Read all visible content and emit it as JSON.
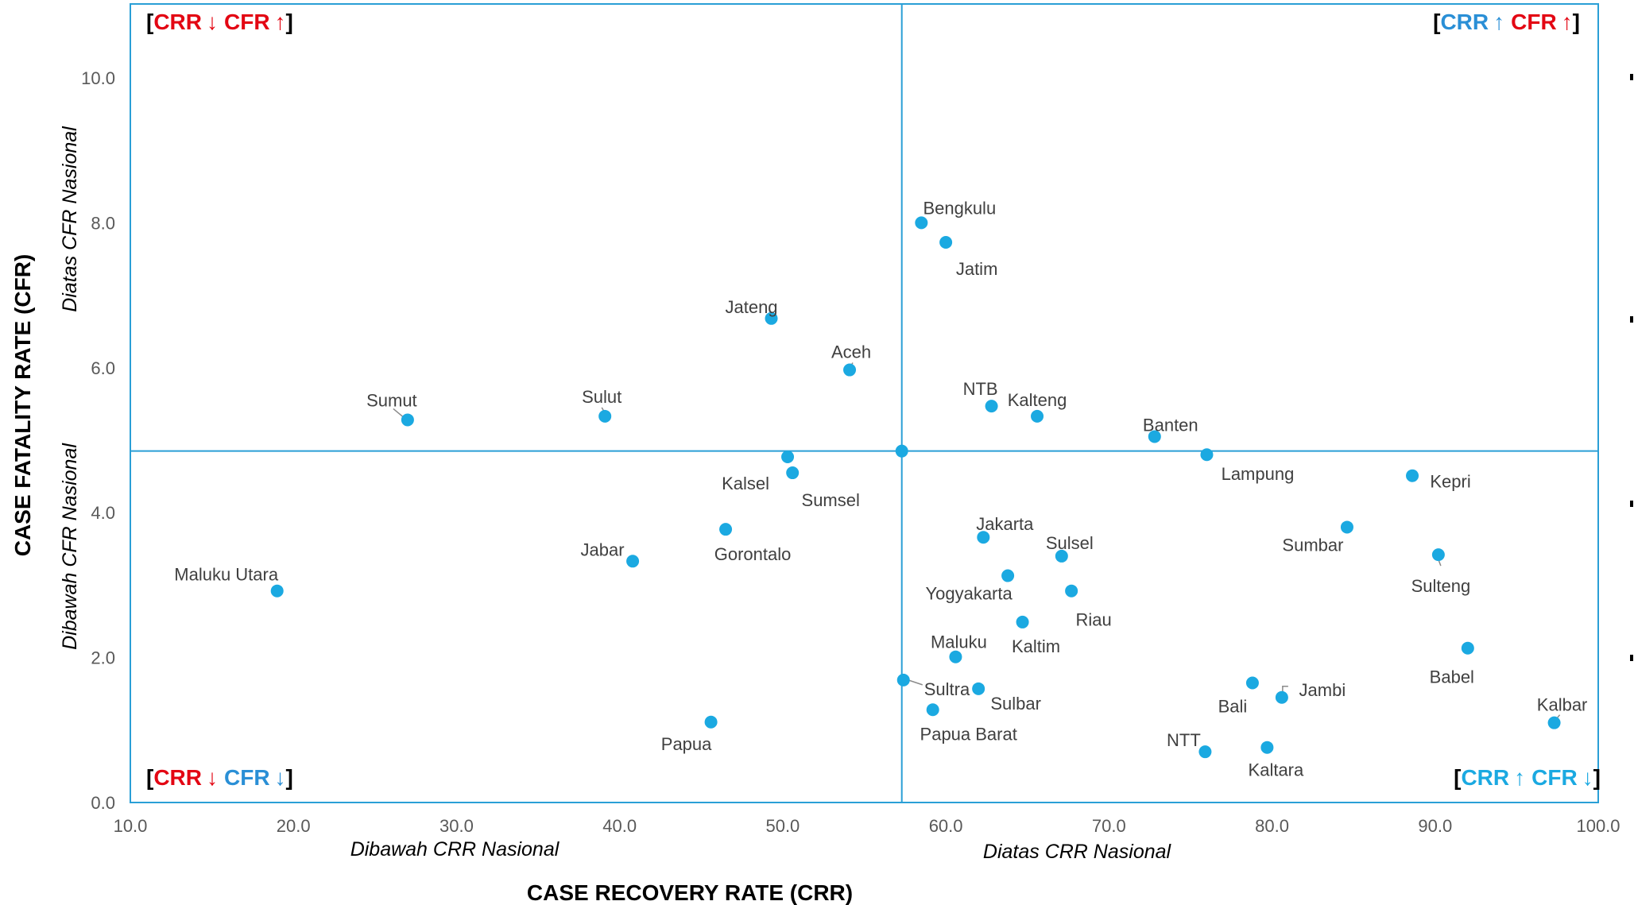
{
  "chart_data": {
    "type": "scatter",
    "xlabel": "CASE RECOVERY RATE (CRR)",
    "ylabel": "CASE FATALITY RATE (CFR)",
    "xlim": [
      10,
      100
    ],
    "ylim": [
      0,
      11
    ],
    "x_ticks": [
      "10.0",
      "20.0",
      "30.0",
      "40.0",
      "50.0",
      "60.0",
      "70.0",
      "80.0",
      "90.0",
      "100.0"
    ],
    "y_ticks": [
      "0.0",
      "2.0",
      "4.0",
      "6.0",
      "8.0",
      "10.0"
    ],
    "reference_lines": {
      "crr_nasional": 57.3,
      "cfr_nasional": 4.85
    },
    "zone_labels": {
      "x_below": "Dibawah CRR Nasional",
      "x_above": "Diatas CRR Nasional",
      "y_below": "Dibawah CFR Nasional",
      "y_above": "Diatas CFR Nasional"
    },
    "quadrants": {
      "top_left": {
        "a": "CRR",
        "a_arrow": "↓",
        "b": "CFR",
        "b_arrow": "↑"
      },
      "top_right": {
        "a": "CRR",
        "a_arrow": "↑",
        "b": "CFR",
        "b_arrow": "↑"
      },
      "bottom_left": {
        "a": "CRR",
        "a_arrow": "↓",
        "b": "CFR",
        "b_arrow": "↓"
      },
      "bottom_right": {
        "a": "CRR",
        "a_arrow": "↑",
        "b": "CFR",
        "b_arrow": "↓"
      }
    },
    "colors": {
      "point": "#1ba9e1",
      "line": "#2a9fd6",
      "red": "#e30613",
      "blue": "#2a8fd6",
      "cyan": "#1ba9e1"
    },
    "points": [
      {
        "label": "Maluku Utara",
        "x": 19.0,
        "y": 2.92
      },
      {
        "label": "Sumut",
        "x": 27.0,
        "y": 5.28
      },
      {
        "label": "Sulut",
        "x": 39.1,
        "y": 5.33
      },
      {
        "label": "Jabar",
        "x": 40.8,
        "y": 3.33
      },
      {
        "label": "Papua",
        "x": 45.6,
        "y": 1.11
      },
      {
        "label": "Gorontalo",
        "x": 46.5,
        "y": 3.77
      },
      {
        "label": "Jateng",
        "x": 49.3,
        "y": 6.68
      },
      {
        "label": "Kalsel",
        "x": 50.3,
        "y": 4.77
      },
      {
        "label": "Sumsel",
        "x": 50.6,
        "y": 4.55
      },
      {
        "label": "Aceh",
        "x": 54.1,
        "y": 5.97
      },
      {
        "label": "",
        "x": 57.3,
        "y": 4.85
      },
      {
        "label": "Sultra",
        "x": 57.4,
        "y": 1.69
      },
      {
        "label": "Bengkulu",
        "x": 58.5,
        "y": 8.0
      },
      {
        "label": "Papua Barat",
        "x": 59.2,
        "y": 1.28
      },
      {
        "label": "Jatim",
        "x": 60.0,
        "y": 7.73
      },
      {
        "label": "Maluku",
        "x": 60.6,
        "y": 2.01
      },
      {
        "label": "Sulbar",
        "x": 62.0,
        "y": 1.57
      },
      {
        "label": "Jakarta",
        "x": 62.3,
        "y": 3.66
      },
      {
        "label": "NTB",
        "x": 62.8,
        "y": 5.47
      },
      {
        "label": "Yogyakarta",
        "x": 63.8,
        "y": 3.13
      },
      {
        "label": "Kaltim",
        "x": 64.7,
        "y": 2.49
      },
      {
        "label": "Kalteng",
        "x": 65.6,
        "y": 5.33
      },
      {
        "label": "Sulsel",
        "x": 67.1,
        "y": 3.4
      },
      {
        "label": "Riau",
        "x": 67.7,
        "y": 2.92
      },
      {
        "label": "Banten",
        "x": 72.8,
        "y": 5.05
      },
      {
        "label": "NTT",
        "x": 75.9,
        "y": 0.7
      },
      {
        "label": "Lampung",
        "x": 76.0,
        "y": 4.8
      },
      {
        "label": "Bali",
        "x": 78.8,
        "y": 1.65
      },
      {
        "label": "Kaltara",
        "x": 79.7,
        "y": 0.76
      },
      {
        "label": "Jambi",
        "x": 80.6,
        "y": 1.45
      },
      {
        "label": "Sumbar",
        "x": 84.6,
        "y": 3.8
      },
      {
        "label": "Kepri",
        "x": 88.6,
        "y": 4.51
      },
      {
        "label": "Sulteng",
        "x": 90.2,
        "y": 3.42
      },
      {
        "label": "Babel",
        "x": 92.0,
        "y": 2.13
      },
      {
        "label": "Kalbar",
        "x": 97.3,
        "y": 1.1
      }
    ]
  }
}
